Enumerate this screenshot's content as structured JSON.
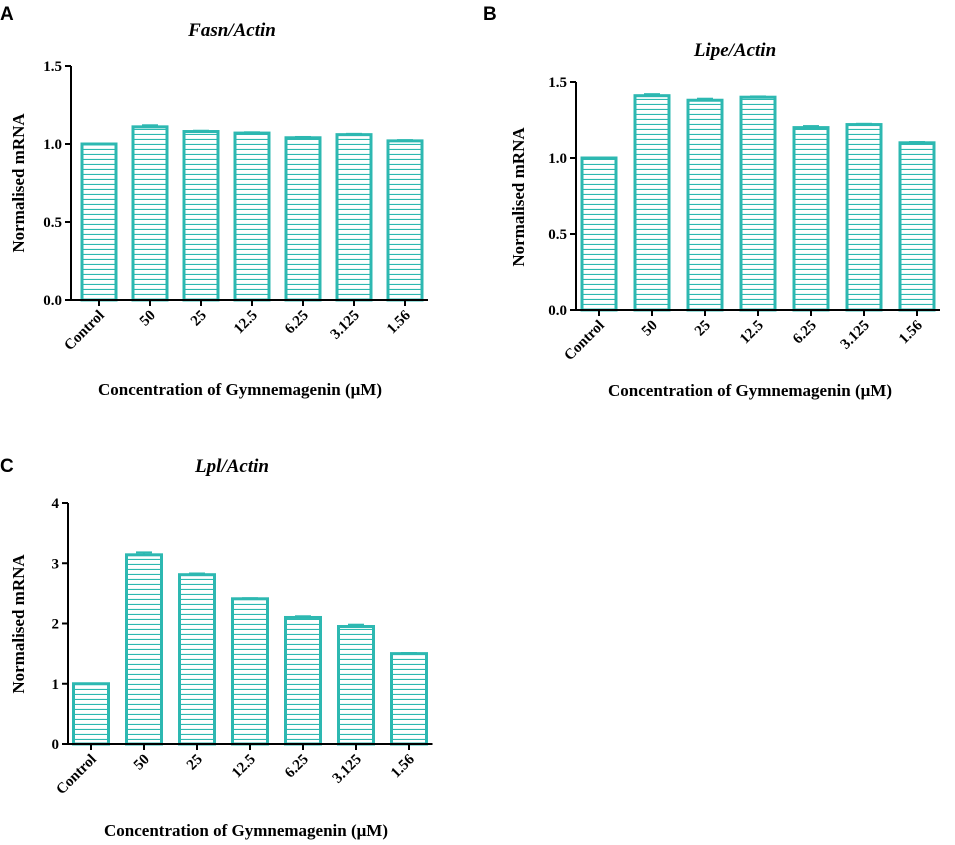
{
  "colors": {
    "bar": "#2db8b1",
    "axis": "#000000",
    "background": "#ffffff"
  },
  "chart_data": [
    {
      "panel": "A",
      "type": "bar",
      "title": "Fasn/Actin",
      "xlabel": "Concentration of Gymnemagenin (μM)",
      "ylabel": "Normalised mRNA",
      "categories": [
        "Control",
        "50",
        "25",
        "12.5",
        "6.25",
        "3.125",
        "1.56"
      ],
      "values": [
        1.0,
        1.11,
        1.08,
        1.07,
        1.04,
        1.06,
        1.02
      ],
      "errors": [
        0.0,
        0.01,
        0.005,
        0.005,
        0.005,
        0.005,
        0.005
      ],
      "ylim": [
        0,
        1.5
      ],
      "yticks": [
        0.0,
        0.5,
        1.0,
        1.5
      ],
      "ytick_labels": [
        "0.0",
        "0.5",
        "1.0",
        "1.5"
      ]
    },
    {
      "panel": "B",
      "type": "bar",
      "title": "Lipe/Actin",
      "xlabel": "Concentration of Gymnemagenin (μM)",
      "ylabel": "Normalised mRNA",
      "categories": [
        "Control",
        "50",
        "25",
        "12.5",
        "6.25",
        "3.125",
        "1.56"
      ],
      "values": [
        1.0,
        1.41,
        1.38,
        1.4,
        1.2,
        1.22,
        1.1
      ],
      "errors": [
        0.0,
        0.01,
        0.01,
        0.005,
        0.01,
        0.005,
        0.005
      ],
      "ylim": [
        0,
        1.5
      ],
      "yticks": [
        0.0,
        0.5,
        1.0,
        1.5
      ],
      "ytick_labels": [
        "0.0",
        "0.5",
        "1.0",
        "1.5"
      ]
    },
    {
      "panel": "C",
      "type": "bar",
      "title": "Lpl/Actin",
      "xlabel": "Concentration of Gymnemagenin (μM)",
      "ylabel": "Normalised mRNA",
      "categories": [
        "Control",
        "50",
        "25",
        "12.5",
        "6.25",
        "3.125",
        "1.56"
      ],
      "values": [
        1.0,
        3.14,
        2.81,
        2.41,
        2.1,
        1.95,
        1.5
      ],
      "errors": [
        0.0,
        0.04,
        0.02,
        0.01,
        0.02,
        0.03,
        0.01
      ],
      "ylim": [
        0,
        4
      ],
      "yticks": [
        0,
        1,
        2,
        3,
        4
      ],
      "ytick_labels": [
        "0",
        "1",
        "2",
        "3",
        "4"
      ]
    }
  ]
}
